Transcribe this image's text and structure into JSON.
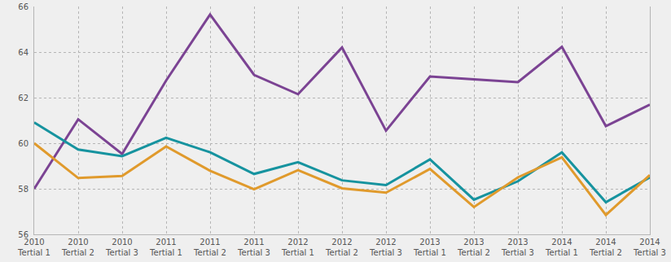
{
  "chart_data": {
    "type": "line",
    "categories": [
      "2010 Tertial 1",
      "2010 Tertial 2",
      "2010 Tertial 3",
      "2011 Tertial 1",
      "2011 Tertial 2",
      "2011 Tertial 3",
      "2012 Tertial 1",
      "2012 Tertial 2",
      "2012 Tertial 3",
      "2013 Tertial 1",
      "2013 Tertial 2",
      "2013 Tertial 3",
      "2014 Tertial 1",
      "2014 Tertial 2",
      "2014 Tertial 3"
    ],
    "series": [
      {
        "color": "#7b4393",
        "values": [
          58.0,
          61.05,
          59.53,
          62.75,
          65.65,
          63.0,
          62.15,
          64.2,
          60.55,
          62.93,
          62.8,
          62.68,
          64.23,
          60.75,
          61.69
        ]
      },
      {
        "color": "#16939f",
        "values": [
          60.91,
          59.72,
          59.43,
          60.24,
          59.6,
          58.65,
          59.17,
          58.37,
          58.16,
          59.29,
          57.52,
          58.33,
          59.6,
          57.41,
          58.5
        ]
      },
      {
        "color": "#e09a2c",
        "values": [
          60.0,
          58.47,
          58.56,
          59.86,
          58.79,
          57.98,
          58.82,
          58.02,
          57.83,
          58.87,
          57.2,
          58.5,
          59.38,
          56.85,
          58.6
        ]
      }
    ],
    "ylim": [
      56,
      66
    ],
    "yticks": [
      56,
      58,
      60,
      62,
      64,
      66
    ],
    "grid": true,
    "tick_labels": true
  }
}
